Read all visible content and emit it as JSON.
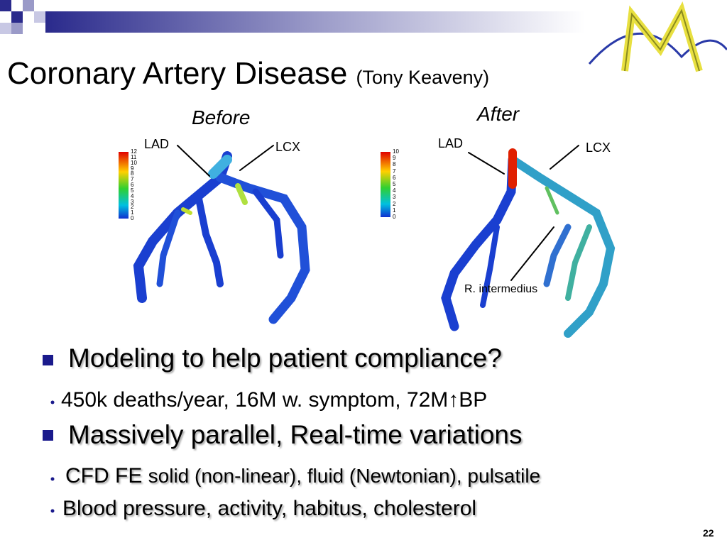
{
  "title": "Coronary Artery Disease",
  "title_note": "(Tony Keaveny)",
  "figures": [
    {
      "caption": "Before",
      "labels": [
        "LAD",
        "LCX"
      ],
      "colorbar": [
        12,
        11,
        10,
        9,
        8,
        7,
        6,
        5,
        4,
        3,
        2,
        1,
        0
      ]
    },
    {
      "caption": "After",
      "labels": [
        "LAD",
        "LCX",
        "R. intermedius"
      ],
      "colorbar": [
        10,
        9,
        8,
        7,
        6,
        5,
        4,
        3,
        2,
        1,
        0
      ]
    }
  ],
  "bullets": [
    {
      "text": "Modeling to help patient compliance?",
      "sub": [
        {
          "text": "450k deaths/year, 16M w. symptom, 72M↑BP"
        }
      ]
    },
    {
      "text": "Massively parallel, Real-time variations",
      "sub": [
        {
          "lead": "CFD FE",
          "text": "solid (non-linear), fluid (Newtonian), pulsatile"
        },
        {
          "text": "Blood pressure, activity, habitus, cholesterol"
        }
      ]
    }
  ],
  "page_number": "22"
}
